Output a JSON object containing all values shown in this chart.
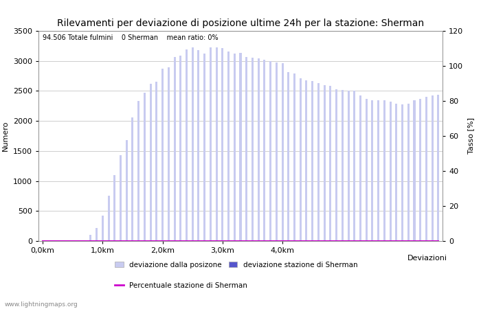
{
  "title": "Rilevamenti per deviazione di posizione ultime 24h per la stazione: Sherman",
  "subtitle": "94.506 Totale fulmini    0 Sherman    mean ratio: 0%",
  "xlabel": "Deviazioni",
  "ylabel_left": "Numero",
  "ylabel_right": "Tasso [%]",
  "x_tick_labels": [
    "0,0km",
    "1,0km",
    "2,0km",
    "3,0km",
    "4,0km"
  ],
  "x_tick_positions": [
    0,
    10,
    20,
    30,
    40
  ],
  "bar_values": [
    2,
    3,
    4,
    5,
    6,
    8,
    10,
    13,
    100,
    220,
    420,
    750,
    1100,
    1430,
    1680,
    2060,
    2330,
    2470,
    2620,
    2650,
    2870,
    2890,
    3060,
    3090,
    3190,
    3220,
    3180,
    3120,
    3220,
    3220,
    3215,
    3160,
    3120,
    3130,
    3060,
    3050,
    3040,
    3020,
    3000,
    2970,
    2960,
    2810,
    2790,
    2710,
    2680,
    2660,
    2630,
    2600,
    2580,
    2530,
    2520,
    2510,
    2500,
    2430,
    2370,
    2350,
    2340,
    2340,
    2320,
    2290,
    2280,
    2290,
    2350,
    2370,
    2400,
    2420,
    2440
  ],
  "station_values": [
    0,
    0,
    0,
    0,
    0,
    0,
    0,
    0,
    0,
    0,
    0,
    0,
    0,
    0,
    0,
    0,
    0,
    0,
    0,
    0,
    0,
    0,
    0,
    0,
    0,
    0,
    0,
    0,
    0,
    0,
    0,
    0,
    0,
    0,
    0,
    0,
    0,
    0,
    0,
    0,
    0,
    0,
    0,
    0,
    0,
    0,
    0,
    0,
    0,
    0,
    0,
    0,
    0,
    0,
    0,
    0,
    0,
    0,
    0,
    0,
    0,
    0,
    0,
    0,
    0,
    0,
    0
  ],
  "percent_values": [
    0,
    0,
    0,
    0,
    0,
    0,
    0,
    0,
    0,
    0,
    0,
    0,
    0,
    0,
    0,
    0,
    0,
    0,
    0,
    0,
    0,
    0,
    0,
    0,
    0,
    0,
    0,
    0,
    0,
    0,
    0,
    0,
    0,
    0,
    0,
    0,
    0,
    0,
    0,
    0,
    0,
    0,
    0,
    0,
    0,
    0,
    0,
    0,
    0,
    0,
    0,
    0,
    0,
    0,
    0,
    0,
    0,
    0,
    0,
    0,
    0,
    0,
    0,
    0,
    0,
    0,
    0
  ],
  "bar_color_light": "#c8cbf0",
  "bar_color_dark": "#5555cc",
  "line_color": "#cc00cc",
  "bg_color": "#ffffff",
  "grid_color": "#bbbbbb",
  "ylim_left": [
    0,
    3500
  ],
  "ylim_right": [
    0,
    120
  ],
  "yticks_left": [
    0,
    500,
    1000,
    1500,
    2000,
    2500,
    3000,
    3500
  ],
  "yticks_right": [
    0,
    20,
    40,
    60,
    80,
    100,
    120
  ],
  "title_fontsize": 10,
  "label_fontsize": 8,
  "tick_fontsize": 8,
  "legend_label1": "deviazione dalla posizone",
  "legend_label2": "deviazione stazione di Sherman",
  "legend_label3": "Percentuale stazione di Sherman",
  "watermark": "www.lightningmaps.org",
  "bar_width": 0.35
}
